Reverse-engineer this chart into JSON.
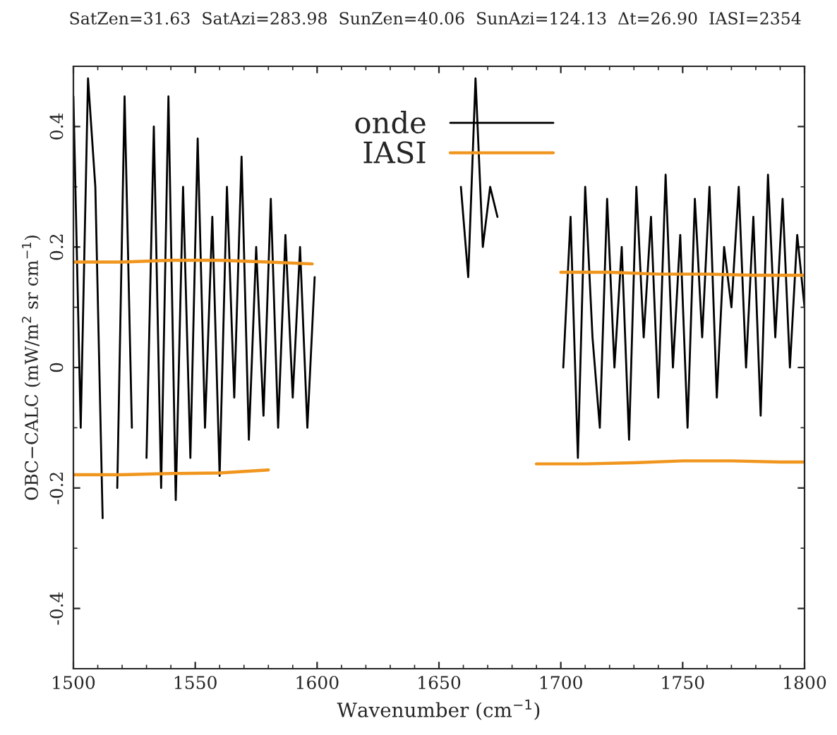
{
  "chart_data": {
    "type": "line",
    "title": "SatZen=31.63  SatAzi=283.98  SunZen=40.06  SunAzi=124.13  Δt=26.90  IASI=2354",
    "xlabel": "Wavenumber (cm$^{−1}$)",
    "ylabel": "OBC−CALC (mW/m$^{2}$ sr cm$^{−1}$)",
    "xlim": [
      1500,
      1800
    ],
    "xticks": [
      1500,
      1550,
      1600,
      1650,
      1700,
      1750,
      1800
    ],
    "ylim": [
      -0.5,
      0.5
    ],
    "yticks": [
      -0.4,
      -0.2,
      0,
      0.2,
      0.4
    ],
    "grid": false,
    "legend": "top",
    "marker": "none",
    "line_style": "solid",
    "series": [
      {
        "name": "onde",
        "color": "#000000",
        "x": [
          1500,
          1503,
          1506,
          1509,
          1512,
          1515,
          1518,
          1521,
          1524,
          1527,
          1530,
          1533,
          1536,
          1539,
          1542,
          1545,
          1548,
          1551,
          1554,
          1557,
          1560,
          1563,
          1566,
          1569,
          1572,
          1575,
          1578,
          1581,
          1584,
          1587,
          1590,
          1593,
          1596,
          1599,
          1602,
          1605,
          1608,
          1611,
          1614,
          1617,
          1620,
          1623,
          1626,
          1629,
          1632,
          1635,
          1638,
          1641,
          1644,
          1647,
          1650,
          1653,
          1656,
          1659,
          1662,
          1665,
          1668,
          1671,
          1674,
          1677,
          1680,
          1683,
          1686,
          1689,
          1692,
          1695,
          1698,
          1701,
          1704,
          1707,
          1710,
          1713,
          1716,
          1719,
          1722,
          1725,
          1728,
          1731,
          1734,
          1737,
          1740,
          1743,
          1746,
          1749,
          1752,
          1755,
          1758,
          1761,
          1764,
          1767,
          1770,
          1773,
          1776,
          1779,
          1782,
          1785,
          1788,
          1791,
          1794,
          1797,
          1800
        ],
        "values": [
          0.45,
          -0.1,
          0.48,
          0.3,
          -0.25,
          null,
          -0.2,
          0.45,
          -0.1,
          null,
          -0.15,
          0.4,
          -0.2,
          0.45,
          -0.22,
          0.3,
          -0.15,
          0.38,
          -0.1,
          0.25,
          -0.18,
          0.3,
          -0.05,
          0.35,
          -0.12,
          0.2,
          -0.08,
          0.28,
          -0.1,
          0.22,
          -0.05,
          0.2,
          -0.1,
          0.15,
          null,
          null,
          null,
          null,
          null,
          null,
          null,
          null,
          null,
          null,
          null,
          null,
          null,
          null,
          null,
          null,
          null,
          null,
          null,
          0.3,
          0.15,
          0.48,
          0.2,
          0.3,
          0.25,
          null,
          null,
          null,
          null,
          null,
          null,
          null,
          null,
          0.0,
          0.25,
          -0.15,
          0.3,
          0.05,
          -0.1,
          0.28,
          0.0,
          0.2,
          -0.12,
          0.3,
          0.05,
          0.25,
          -0.05,
          0.32,
          0.0,
          0.22,
          -0.1,
          0.28,
          0.05,
          0.3,
          -0.05,
          0.2,
          0.1,
          0.3,
          0.0,
          0.25,
          -0.08,
          0.32,
          0.05,
          0.28,
          0.0,
          0.22,
          0.1
        ]
      },
      {
        "name": "IASI",
        "color": "#f0961e",
        "x": [
          1500,
          1520,
          1540,
          1560,
          1580,
          1598,
          1650,
          1700,
          1720,
          1740,
          1760,
          1780,
          1800
        ],
        "values": [
          0.175,
          0.175,
          0.178,
          0.178,
          0.175,
          0.172,
          null,
          0.158,
          0.158,
          0.155,
          0.155,
          0.153,
          0.153
        ]
      },
      {
        "color": "#f0961e",
        "x": [
          1500,
          1520,
          1540,
          1560,
          1580,
          1620,
          1690,
          1710,
          1730,
          1750,
          1770,
          1790,
          1800
        ],
        "values": [
          -0.178,
          -0.178,
          -0.176,
          -0.175,
          -0.17,
          null,
          -0.16,
          -0.16,
          -0.158,
          -0.155,
          -0.155,
          -0.157,
          -0.157
        ]
      }
    ]
  }
}
